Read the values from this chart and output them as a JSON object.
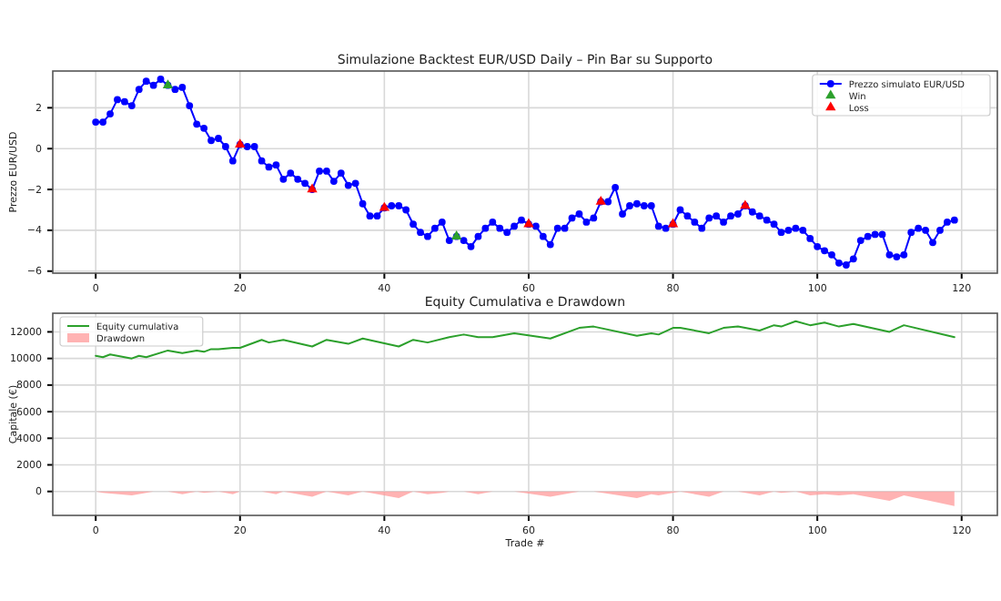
{
  "chart_data": [
    {
      "type": "line",
      "title": "Simulazione Backtest EUR/USD Daily – Pin Bar su Supporto",
      "ylabel": "Prezzo EUR/USD",
      "xlim": [
        -5.95,
        124.95
      ],
      "xticks": [
        0,
        20,
        40,
        60,
        80,
        100,
        120
      ],
      "ylim": [
        -6.1,
        3.8
      ],
      "yticks": [
        {
          "value": -6,
          "label": "−6"
        },
        {
          "value": -4,
          "label": "−4"
        },
        {
          "value": -2,
          "label": "−2"
        },
        0,
        2
      ],
      "grid": true,
      "legend": "top right",
      "series": [
        {
          "name": "Prezzo simulato EUR/USD",
          "color": "#0000ff",
          "marker": "circle",
          "x": [
            0,
            1,
            2,
            3,
            4,
            5,
            6,
            7,
            8,
            9,
            10,
            11,
            12,
            13,
            14,
            15,
            16,
            17,
            18,
            19,
            20,
            21,
            22,
            23,
            24,
            25,
            26,
            27,
            28,
            29,
            30,
            31,
            32,
            33,
            34,
            35,
            36,
            37,
            38,
            39,
            40,
            41,
            42,
            43,
            44,
            45,
            46,
            47,
            48,
            49,
            50,
            51,
            52,
            53,
            54,
            55,
            56,
            57,
            58,
            59,
            60,
            61,
            62,
            63,
            64,
            65,
            66,
            67,
            68,
            69,
            70,
            71,
            72,
            73,
            74,
            75,
            76,
            77,
            78,
            79,
            80,
            81,
            82,
            83,
            84,
            85,
            86,
            87,
            88,
            89,
            90,
            91,
            92,
            93,
            94,
            95,
            96,
            97,
            98,
            99,
            100,
            101,
            102,
            103,
            104,
            105,
            106,
            107,
            108,
            109,
            110,
            111,
            112,
            113,
            114,
            115,
            116,
            117,
            118,
            119
          ],
          "values": [
            1.3,
            1.3,
            1.7,
            2.4,
            2.3,
            2.1,
            2.9,
            3.3,
            3.1,
            3.4,
            3.1,
            2.9,
            3.0,
            2.1,
            1.2,
            1.0,
            0.4,
            0.5,
            0.1,
            -0.6,
            0.2,
            0.1,
            0.1,
            -0.6,
            -0.9,
            -0.8,
            -1.5,
            -1.2,
            -1.5,
            -1.7,
            -2.0,
            -1.1,
            -1.1,
            -1.6,
            -1.2,
            -1.8,
            -1.7,
            -2.7,
            -3.3,
            -3.3,
            -2.9,
            -2.8,
            -2.8,
            -3.0,
            -3.7,
            -4.1,
            -4.3,
            -3.9,
            -3.6,
            -4.5,
            -4.3,
            -4.5,
            -4.8,
            -4.3,
            -3.9,
            -3.6,
            -3.9,
            -4.1,
            -3.8,
            -3.5,
            -3.7,
            -3.8,
            -4.3,
            -4.7,
            -3.9,
            -3.9,
            -3.4,
            -3.2,
            -3.6,
            -3.4,
            -2.6,
            -2.6,
            -1.9,
            -3.2,
            -2.8,
            -2.7,
            -2.8,
            -2.8,
            -3.8,
            -3.9,
            -3.7,
            -3.0,
            -3.3,
            -3.6,
            -3.9,
            -3.4,
            -3.3,
            -3.6,
            -3.3,
            -3.2,
            -2.8,
            -3.1,
            -3.3,
            -3.5,
            -3.7,
            -4.1,
            -4.0,
            -3.9,
            -4.0,
            -4.4,
            -4.8,
            -5.0,
            -5.2,
            -5.6,
            -5.7,
            -5.4,
            -4.5,
            -4.3,
            -4.2,
            -4.2,
            -5.2,
            -5.3,
            -5.2,
            -4.1,
            -3.9,
            -4.0,
            -4.6,
            -4.0,
            -3.6,
            -3.5
          ]
        },
        {
          "name": "Win",
          "type": "scatter",
          "color": "#2ca02c",
          "marker": "triangle",
          "x": [
            10,
            50
          ],
          "values": [
            3.1,
            -4.3
          ]
        },
        {
          "name": "Loss",
          "type": "scatter",
          "color": "#ff0000",
          "marker": "triangle",
          "x": [
            20,
            30,
            40,
            60,
            70,
            80,
            90
          ],
          "values": [
            0.2,
            -2.0,
            -2.9,
            -3.7,
            -2.6,
            -3.7,
            -2.8
          ]
        }
      ]
    },
    {
      "type": "line",
      "title": "Equity Cumulativa e Drawdown",
      "xlabel": "Trade #",
      "ylabel": "Capitale (€)",
      "xlim": [
        -5.95,
        124.95
      ],
      "xticks": [
        0,
        20,
        40,
        60,
        80,
        100,
        120
      ],
      "ylim": [
        -1800,
        13400
      ],
      "yticks": [
        0,
        2000,
        4000,
        6000,
        8000,
        10000,
        12000
      ],
      "grid": true,
      "legend": "top left",
      "series": [
        {
          "name": "Equity cumulativa",
          "color": "#2ca02c",
          "x": [
            0,
            1,
            2,
            5,
            6,
            7,
            10,
            12,
            14,
            15,
            16,
            17,
            19,
            20,
            23,
            24,
            26,
            30,
            32,
            35,
            37,
            42,
            44,
            46,
            49,
            51,
            53,
            55,
            58,
            63,
            67,
            69,
            75,
            77,
            78,
            80,
            81,
            85,
            87,
            89,
            92,
            94,
            95,
            97,
            99,
            101,
            103,
            105,
            110,
            112,
            119
          ],
          "values": [
            10200,
            10100,
            10300,
            10000,
            10200,
            10100,
            10600,
            10400,
            10600,
            10500,
            10700,
            10700,
            10800,
            10800,
            11400,
            11200,
            11400,
            10900,
            11400,
            11100,
            11500,
            10900,
            11400,
            11200,
            11600,
            11800,
            11600,
            11600,
            11900,
            11500,
            12300,
            12400,
            11700,
            11900,
            11800,
            12300,
            12300,
            11900,
            12300,
            12400,
            12100,
            12500,
            12400,
            12800,
            12500,
            12700,
            12400,
            12600,
            12000,
            12500,
            11600
          ]
        },
        {
          "name": "Drawdown",
          "type": "area",
          "color": "#ff9999",
          "x": [
            0,
            1,
            5,
            7,
            8,
            10,
            12,
            14,
            15,
            17,
            19,
            20,
            23,
            25,
            26,
            30,
            32,
            35,
            37,
            42,
            44,
            46,
            48,
            49,
            51,
            53,
            55,
            58,
            63,
            67,
            69,
            75,
            77,
            78,
            81,
            85,
            87,
            89,
            92,
            94,
            95,
            97,
            99,
            101,
            103,
            105,
            110,
            112,
            119
          ],
          "values": [
            0,
            -100,
            -300,
            -100,
            0,
            0,
            -200,
            0,
            -100,
            0,
            -200,
            0,
            0,
            -200,
            0,
            -400,
            0,
            -300,
            0,
            -500,
            0,
            -200,
            -100,
            0,
            0,
            -200,
            0,
            0,
            -400,
            0,
            0,
            -500,
            -200,
            -300,
            0,
            -400,
            0,
            0,
            -300,
            0,
            -100,
            0,
            -300,
            -200,
            -300,
            -200,
            -700,
            -300,
            -1100
          ]
        }
      ]
    }
  ]
}
